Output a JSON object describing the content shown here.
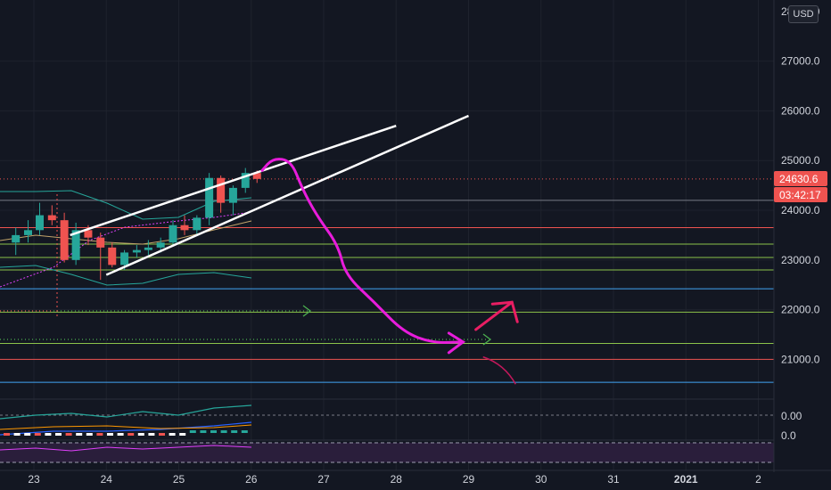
{
  "price_axis": {
    "currency": "USD",
    "partial_top_label": "28000.0",
    "ticks": [
      {
        "value": 27000,
        "label": "27000.0"
      },
      {
        "value": 26000,
        "label": "26000.0"
      },
      {
        "value": 25000,
        "label": "25000.0"
      },
      {
        "value": 24000,
        "label": "24000.0"
      },
      {
        "value": 23000,
        "label": "23000.0"
      },
      {
        "value": 22000,
        "label": "22000.0"
      },
      {
        "value": 21000,
        "label": "21000.0"
      }
    ],
    "current_price": {
      "value": 24630.6,
      "label": "24630.6",
      "countdown": "03:42:17",
      "color": "#ef5350"
    }
  },
  "indicator_axis": {
    "macd_label": "0.00",
    "rsi_label": "0.0"
  },
  "time_axis": {
    "labels": [
      {
        "day": 23,
        "label": "23"
      },
      {
        "day": 24,
        "label": "24"
      },
      {
        "day": 25,
        "label": "25"
      },
      {
        "day": 26,
        "label": "26"
      },
      {
        "day": 27,
        "label": "27"
      },
      {
        "day": 28,
        "label": "28"
      },
      {
        "day": 29,
        "label": "29"
      },
      {
        "day": 30,
        "label": "30"
      },
      {
        "day": 31,
        "label": "31"
      },
      {
        "day": 32,
        "label": "2021",
        "bold": true
      },
      {
        "day": 33,
        "label": "2"
      }
    ]
  },
  "colors": {
    "up": "#26a69a",
    "down": "#ef5350",
    "channel": "#ffffff",
    "projection": "#e81cdb",
    "arrow_up": "#e91e63",
    "arrow_down": "#c2185b",
    "level_green": "#8bc34a",
    "level_red": "#ef5350",
    "level_blue": "#42a5f5",
    "level_gray": "#787b86"
  },
  "chart_data": {
    "type": "candlestick",
    "pair_price_unit": "USD",
    "candles_unit_note": "4-hour candles, x in days",
    "candles": [
      {
        "t": 22.75,
        "o": 23350,
        "h": 23650,
        "l": 23100,
        "c": 23500
      },
      {
        "t": 22.92,
        "o": 23500,
        "h": 23800,
        "l": 23350,
        "c": 23600
      },
      {
        "t": 23.08,
        "o": 23600,
        "h": 24150,
        "l": 23500,
        "c": 23900
      },
      {
        "t": 23.25,
        "o": 23900,
        "h": 24100,
        "l": 23700,
        "c": 23800
      },
      {
        "t": 23.42,
        "o": 23800,
        "h": 23950,
        "l": 22950,
        "c": 23000
      },
      {
        "t": 23.58,
        "o": 23000,
        "h": 23750,
        "l": 22900,
        "c": 23600
      },
      {
        "t": 23.75,
        "o": 23600,
        "h": 23700,
        "l": 23300,
        "c": 23450
      },
      {
        "t": 23.92,
        "o": 23450,
        "h": 23550,
        "l": 22600,
        "c": 23250
      },
      {
        "t": 24.08,
        "o": 23250,
        "h": 23350,
        "l": 22850,
        "c": 22900
      },
      {
        "t": 24.25,
        "o": 22900,
        "h": 23200,
        "l": 22800,
        "c": 23150
      },
      {
        "t": 24.42,
        "o": 23150,
        "h": 23300,
        "l": 23050,
        "c": 23200
      },
      {
        "t": 24.58,
        "o": 23200,
        "h": 23400,
        "l": 23100,
        "c": 23250
      },
      {
        "t": 24.75,
        "o": 23250,
        "h": 23450,
        "l": 23150,
        "c": 23350
      },
      {
        "t": 24.92,
        "o": 23350,
        "h": 23800,
        "l": 23300,
        "c": 23700
      },
      {
        "t": 25.08,
        "o": 23700,
        "h": 23900,
        "l": 23500,
        "c": 23600
      },
      {
        "t": 25.25,
        "o": 23600,
        "h": 23900,
        "l": 23500,
        "c": 23850
      },
      {
        "t": 25.42,
        "o": 23850,
        "h": 24750,
        "l": 23700,
        "c": 24650
      },
      {
        "t": 25.58,
        "o": 24650,
        "h": 24700,
        "l": 23950,
        "c": 24150
      },
      {
        "t": 25.75,
        "o": 24150,
        "h": 24500,
        "l": 23900,
        "c": 24450
      },
      {
        "t": 25.92,
        "o": 24450,
        "h": 24850,
        "l": 24350,
        "c": 24750
      },
      {
        "t": 26.08,
        "o": 24750,
        "h": 24800,
        "l": 24550,
        "c": 24630.6
      }
    ],
    "horizontal_levels": [
      {
        "price": 24200,
        "color": "#787b86"
      },
      {
        "price": 23650,
        "color": "#ef5350"
      },
      {
        "price": 23320,
        "color": "#8bc34a"
      },
      {
        "price": 23050,
        "color": "#8bc34a"
      },
      {
        "price": 22800,
        "color": "#8bc34a"
      },
      {
        "price": 22420,
        "color": "#42a5f5"
      },
      {
        "price": 21950,
        "color": "#8bc34a"
      },
      {
        "price": 21320,
        "color": "#8bc34a"
      },
      {
        "price": 21000,
        "color": "#ef5350"
      },
      {
        "price": 20540,
        "color": "#42a5f5"
      }
    ],
    "channel": {
      "upper": [
        [
          23.5,
          23500
        ],
        [
          28,
          25700
        ]
      ],
      "lower": [
        [
          24,
          22700
        ],
        [
          29,
          25900
        ]
      ]
    },
    "projection_path": [
      [
        26.15,
        24800
      ],
      [
        26.3,
        25050
      ],
      [
        26.55,
        25000
      ],
      [
        26.7,
        24450
      ],
      [
        26.9,
        23900
      ],
      [
        27.2,
        23300
      ],
      [
        27.3,
        22700
      ],
      [
        27.7,
        22150
      ],
      [
        28.1,
        21550
      ],
      [
        28.5,
        21330
      ],
      [
        28.9,
        21350
      ]
    ],
    "up_arrow": [
      [
        29.1,
        21600
      ],
      [
        29.6,
        22150
      ]
    ],
    "down_arrow": [
      [
        29.2,
        21050
      ],
      [
        29.65,
        20500
      ]
    ],
    "xlim": [
      22.5,
      33.4
    ],
    "ylim": [
      19850,
      28050
    ]
  }
}
